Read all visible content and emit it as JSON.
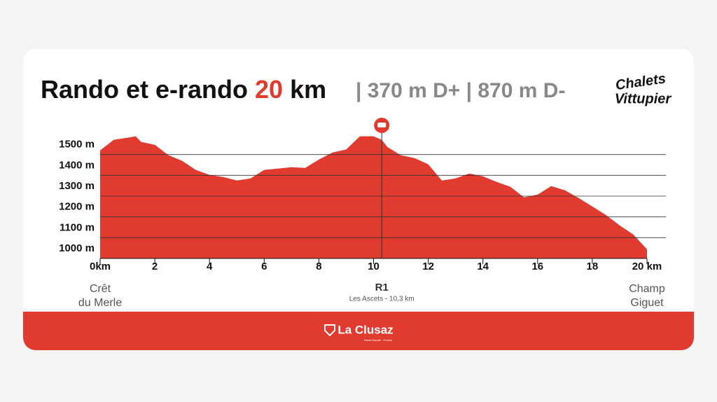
{
  "chart_data": {
    "type": "area",
    "title_parts": [
      "Rando et e-rando ",
      "20",
      " km"
    ],
    "subtitle": "| 370 m D+ | 870 m D-",
    "logo": [
      "Chalets",
      "Vittupier"
    ],
    "footer": {
      "brand": "La Clusaz",
      "tagline": "Haute-Savoie · France"
    },
    "color": "#e13a2e",
    "x": [
      0,
      0.5,
      1,
      1.3,
      1.5,
      2,
      2.5,
      3,
      3.5,
      4,
      4.5,
      5,
      5.5,
      6,
      6.5,
      7,
      7.5,
      8,
      8.5,
      9,
      9.5,
      10,
      10.3,
      10.5,
      11,
      11.5,
      12,
      12.5,
      13,
      13.5,
      14,
      14.5,
      15,
      15.5,
      16,
      16.5,
      17,
      17.5,
      18,
      18.5,
      19,
      19.5,
      20
    ],
    "y": [
      1520,
      1571,
      1581,
      1588,
      1561,
      1547,
      1497,
      1470,
      1426,
      1402,
      1392,
      1375,
      1385,
      1426,
      1432,
      1439,
      1436,
      1476,
      1510,
      1524,
      1588,
      1588,
      1571,
      1537,
      1497,
      1483,
      1453,
      1375,
      1385,
      1409,
      1395,
      1368,
      1345,
      1294,
      1307,
      1348,
      1328,
      1291,
      1250,
      1209,
      1159,
      1115,
      1044
    ],
    "xlim": [
      0,
      20
    ],
    "ylim": [
      1000,
      1600
    ],
    "xticks": [
      {
        "value": 0,
        "label": "0km"
      },
      2,
      4,
      6,
      8,
      10,
      12,
      14,
      16,
      18,
      {
        "value": 20,
        "label": "20 km"
      }
    ],
    "yticks": [
      {
        "value": 1000,
        "label": "1000 m"
      },
      {
        "value": 1100,
        "label": "1100 m"
      },
      {
        "value": 1200,
        "label": "1200 m"
      },
      {
        "value": 1300,
        "label": "1300 m"
      },
      {
        "value": 1400,
        "label": "1400 m"
      },
      {
        "value": 1500,
        "label": "1500 m"
      }
    ],
    "grid": true,
    "start_label": [
      "Crêt",
      "du Merle"
    ],
    "end_label": [
      "Champ",
      "Giguet"
    ],
    "markers": [
      {
        "x": 10.3,
        "label": "R1",
        "sublabel": "Les Ascets  - 10,3 km"
      }
    ]
  }
}
